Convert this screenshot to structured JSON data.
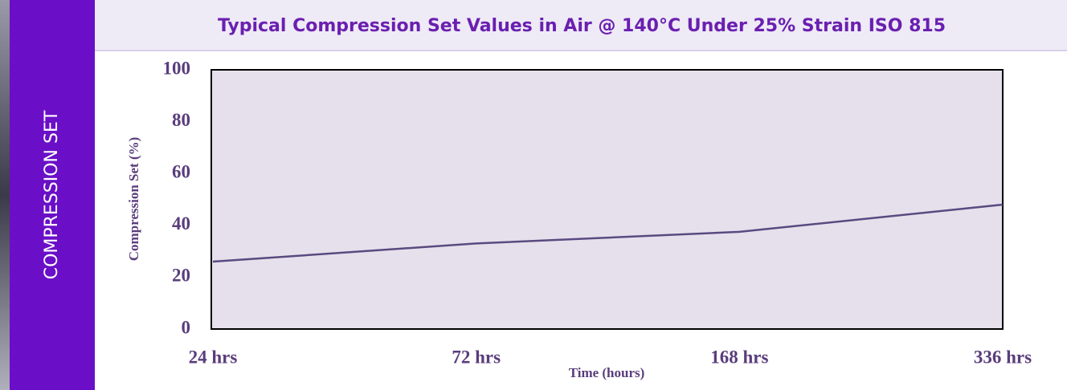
{
  "sidebar": {
    "label": "COMPRESSION SET"
  },
  "chart_data": {
    "type": "line",
    "title": "Typical Compression Set Values in Air @ 140°C Under 25% Strain ISO 815",
    "x_label": "Time (hours)",
    "y_label": "Compression Set (%)",
    "categories": [
      "24 hrs",
      "72 hrs",
      "168 hrs",
      "336 hrs"
    ],
    "values": [
      26,
      33,
      37.5,
      48
    ],
    "color": "#5a4a80",
    "ylim": [
      0,
      100
    ],
    "yticks": [
      0,
      20,
      40,
      60,
      80,
      100
    ],
    "grid": false
  }
}
